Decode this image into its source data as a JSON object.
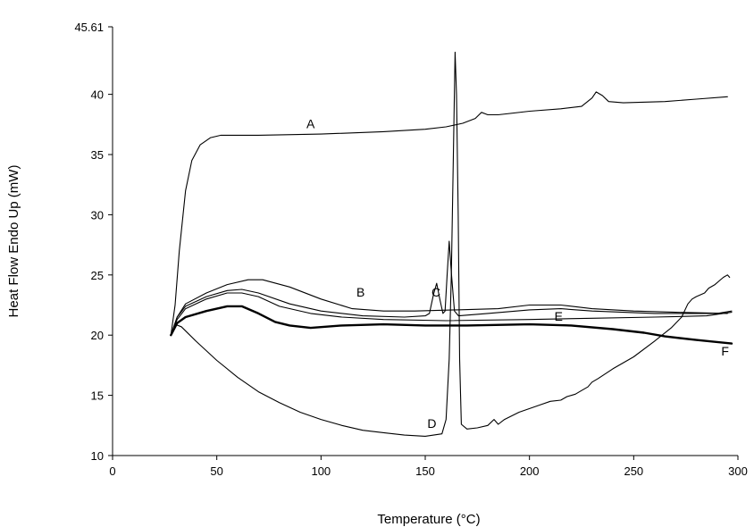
{
  "chart_data": {
    "type": "line",
    "title": "",
    "xlabel": "Temperature (°C)",
    "ylabel": "Heat Flow Endo Up (mW)",
    "xlim": [
      0,
      300
    ],
    "ylim": [
      10,
      45.61
    ],
    "xticks": [
      0,
      50,
      100,
      150,
      200,
      250,
      300
    ],
    "yticks": [
      10,
      15,
      20,
      25,
      30,
      35,
      40,
      45.61
    ],
    "ytick_labels": [
      "10",
      "15",
      "20",
      "25",
      "30",
      "35",
      "40",
      "45.61"
    ],
    "grid": false,
    "legend": "none",
    "series": [
      {
        "name": "A",
        "points": [
          [
            28,
            20.0
          ],
          [
            30,
            22.5
          ],
          [
            32,
            27
          ],
          [
            35,
            32
          ],
          [
            38,
            34.5
          ],
          [
            42,
            35.8
          ],
          [
            47,
            36.4
          ],
          [
            52,
            36.6
          ],
          [
            70,
            36.6
          ],
          [
            100,
            36.7
          ],
          [
            130,
            36.9
          ],
          [
            150,
            37.1
          ],
          [
            160,
            37.3
          ],
          [
            168,
            37.6
          ],
          [
            174,
            38.0
          ],
          [
            177,
            38.5
          ],
          [
            180,
            38.3
          ],
          [
            185,
            38.3
          ],
          [
            200,
            38.6
          ],
          [
            215,
            38.8
          ],
          [
            225,
            39.0
          ],
          [
            230,
            39.7
          ],
          [
            232,
            40.2
          ],
          [
            235,
            39.9
          ],
          [
            238,
            39.4
          ],
          [
            245,
            39.3
          ],
          [
            265,
            39.4
          ],
          [
            280,
            39.6
          ],
          [
            295,
            39.8
          ]
        ]
      },
      {
        "name": "B",
        "points": [
          [
            28,
            20.0
          ],
          [
            31,
            21.5
          ],
          [
            35,
            22.6
          ],
          [
            45,
            23.5
          ],
          [
            55,
            24.2
          ],
          [
            65,
            24.6
          ],
          [
            72,
            24.6
          ],
          [
            85,
            24.0
          ],
          [
            100,
            23.0
          ],
          [
            115,
            22.2
          ],
          [
            130,
            22.0
          ],
          [
            145,
            22.0
          ],
          [
            165,
            22.1
          ],
          [
            185,
            22.2
          ],
          [
            200,
            22.5
          ],
          [
            215,
            22.5
          ],
          [
            230,
            22.2
          ],
          [
            250,
            22.0
          ],
          [
            270,
            21.9
          ],
          [
            295,
            21.8
          ]
        ]
      },
      {
        "name": "C",
        "points": [
          [
            28,
            20.0
          ],
          [
            31,
            21.5
          ],
          [
            35,
            22.4
          ],
          [
            45,
            23.2
          ],
          [
            55,
            23.7
          ],
          [
            62,
            23.8
          ],
          [
            70,
            23.5
          ],
          [
            85,
            22.6
          ],
          [
            100,
            22.0
          ],
          [
            120,
            21.6
          ],
          [
            140,
            21.5
          ],
          [
            150,
            21.6
          ],
          [
            152,
            21.8
          ],
          [
            154,
            23.4
          ],
          [
            155.5,
            24.3
          ],
          [
            157,
            23.0
          ],
          [
            158.5,
            21.8
          ],
          [
            159.5,
            22.0
          ],
          [
            160.5,
            25.0
          ],
          [
            161.5,
            27.8
          ],
          [
            162.5,
            25.2
          ],
          [
            164,
            22.0
          ],
          [
            166,
            21.6
          ],
          [
            180,
            21.8
          ],
          [
            200,
            22.1
          ],
          [
            215,
            22.2
          ],
          [
            230,
            22.0
          ],
          [
            260,
            21.8
          ],
          [
            290,
            21.8
          ],
          [
            297,
            22.0
          ]
        ]
      },
      {
        "name": "D",
        "points": [
          [
            28,
            20.0
          ],
          [
            30,
            20.9
          ],
          [
            33,
            20.7
          ],
          [
            40,
            19.5
          ],
          [
            50,
            17.9
          ],
          [
            60,
            16.5
          ],
          [
            70,
            15.3
          ],
          [
            80,
            14.4
          ],
          [
            90,
            13.6
          ],
          [
            100,
            13.0
          ],
          [
            110,
            12.5
          ],
          [
            120,
            12.1
          ],
          [
            130,
            11.9
          ],
          [
            140,
            11.7
          ],
          [
            150,
            11.6
          ],
          [
            158,
            11.8
          ],
          [
            160,
            13.0
          ],
          [
            161.5,
            18.0
          ],
          [
            162.5,
            25.0
          ],
          [
            163.5,
            35.0
          ],
          [
            164.3,
            43.5
          ],
          [
            165,
            40.0
          ],
          [
            165.8,
            30.0
          ],
          [
            166.5,
            18.0
          ],
          [
            167.3,
            12.6
          ],
          [
            170,
            12.2
          ],
          [
            175,
            12.3
          ],
          [
            180,
            12.5
          ],
          [
            183,
            13.0
          ],
          [
            185,
            12.6
          ],
          [
            188,
            13.0
          ],
          [
            195,
            13.6
          ],
          [
            205,
            14.2
          ],
          [
            210,
            14.5
          ],
          [
            215,
            14.6
          ],
          [
            218,
            14.9
          ],
          [
            222,
            15.1
          ],
          [
            225,
            15.4
          ],
          [
            228,
            15.7
          ],
          [
            230,
            16.1
          ],
          [
            233,
            16.4
          ],
          [
            240,
            17.2
          ],
          [
            250,
            18.2
          ],
          [
            260,
            19.5
          ],
          [
            268,
            20.6
          ],
          [
            273,
            21.5
          ],
          [
            276,
            22.6
          ],
          [
            278,
            23.0
          ],
          [
            280,
            23.2
          ],
          [
            284,
            23.5
          ],
          [
            286,
            23.9
          ],
          [
            289,
            24.2
          ],
          [
            291,
            24.5
          ],
          [
            293,
            24.8
          ],
          [
            295,
            25.0
          ],
          [
            296,
            24.8
          ]
        ]
      },
      {
        "name": "E",
        "points": [
          [
            28,
            20.0
          ],
          [
            31,
            21.3
          ],
          [
            35,
            22.2
          ],
          [
            45,
            23.0
          ],
          [
            55,
            23.5
          ],
          [
            62,
            23.5
          ],
          [
            70,
            23.2
          ],
          [
            80,
            22.4
          ],
          [
            95,
            21.8
          ],
          [
            110,
            21.5
          ],
          [
            130,
            21.3
          ],
          [
            160,
            21.2
          ],
          [
            200,
            21.3
          ],
          [
            230,
            21.4
          ],
          [
            260,
            21.5
          ],
          [
            285,
            21.6
          ],
          [
            297,
            21.9
          ]
        ]
      },
      {
        "name": "F",
        "width": 2.4,
        "points": [
          [
            28,
            20.0
          ],
          [
            31,
            21.0
          ],
          [
            35,
            21.5
          ],
          [
            45,
            22.0
          ],
          [
            55,
            22.4
          ],
          [
            62,
            22.4
          ],
          [
            70,
            21.8
          ],
          [
            78,
            21.1
          ],
          [
            85,
            20.8
          ],
          [
            95,
            20.6
          ],
          [
            110,
            20.8
          ],
          [
            130,
            20.9
          ],
          [
            150,
            20.8
          ],
          [
            170,
            20.8
          ],
          [
            200,
            20.9
          ],
          [
            220,
            20.8
          ],
          [
            240,
            20.5
          ],
          [
            255,
            20.2
          ],
          [
            265,
            19.9
          ],
          [
            280,
            19.6
          ],
          [
            297,
            19.3
          ]
        ]
      }
    ],
    "annotations": [
      {
        "text": "A",
        "x": 93,
        "y": 37.2
      },
      {
        "text": "B",
        "x": 117,
        "y": 23.2
      },
      {
        "text": "C",
        "x": 153,
        "y": 23.2
      },
      {
        "text": "D",
        "x": 151,
        "y": 12.3
      },
      {
        "text": "E",
        "x": 212,
        "y": 21.2
      },
      {
        "text": "F",
        "x": 292,
        "y": 18.3
      }
    ]
  }
}
